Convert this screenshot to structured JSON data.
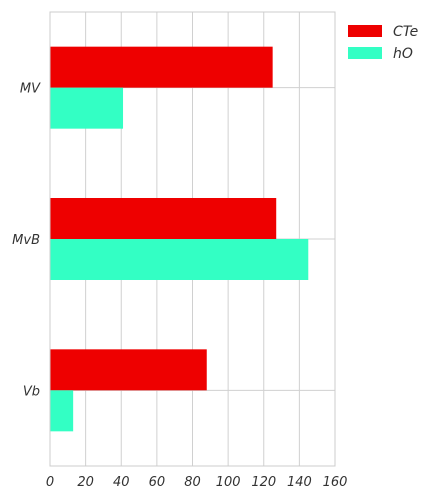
{
  "chart_data": {
    "type": "bar",
    "orientation": "horizontal",
    "categories": [
      "MV",
      "MvB",
      "Vb"
    ],
    "series": [
      {
        "name": "CTe",
        "values": [
          125,
          127,
          88
        ],
        "color": "#ee0000"
      },
      {
        "name": "hO",
        "values": [
          41,
          145,
          13
        ],
        "color": "#33ffc4"
      }
    ],
    "xticks": [
      "0",
      "20",
      "40",
      "60",
      "80",
      "100",
      "120",
      "140",
      "160"
    ],
    "xlim": [
      0,
      160
    ],
    "grid": true,
    "legend_position": "top-right-outside",
    "xlabel": "",
    "ylabel": "",
    "title": ""
  }
}
